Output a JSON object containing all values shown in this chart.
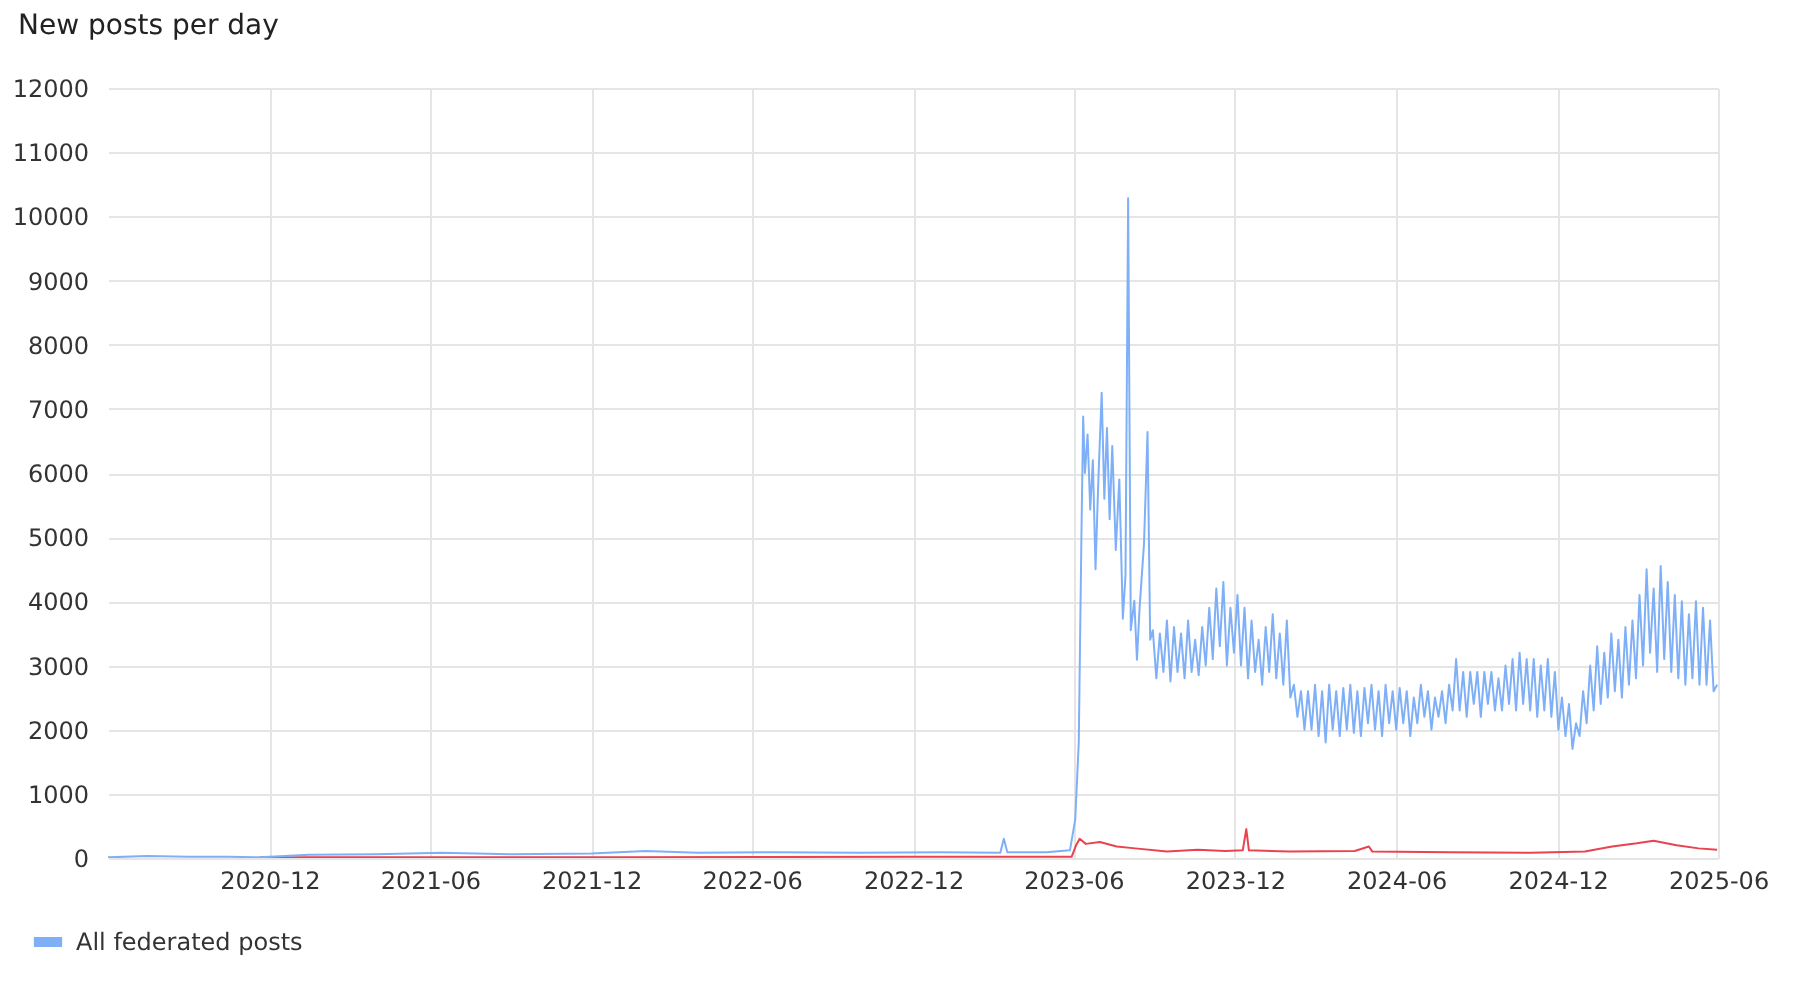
{
  "chart_data": {
    "type": "line",
    "title": "New posts per day",
    "xlim": [
      "2020-06",
      "2025-06"
    ],
    "xticks": [
      "2020-12",
      "2021-06",
      "2021-12",
      "2022-06",
      "2022-12",
      "2023-06",
      "2023-12",
      "2024-06",
      "2024-12",
      "2025-06"
    ],
    "ylim": [
      0,
      12000
    ],
    "yticks": [
      0,
      1000,
      2000,
      3000,
      4000,
      5000,
      6000,
      7000,
      8000,
      9000,
      10000,
      11000,
      12000
    ],
    "grid": true,
    "legend": "bottom left",
    "series": [
      {
        "color": "#e8434f",
        "x": [
          "2020-11-20",
          "2021-06-01",
          "2022-01-01",
          "2022-12-01",
          "2023-05-30",
          "2023-06-04",
          "2023-06-08",
          "2023-06-15",
          "2023-07-01",
          "2023-07-20",
          "2023-08-10",
          "2023-09-15",
          "2023-10-20",
          "2023-11-20",
          "2023-12-10",
          "2023-12-14",
          "2023-12-17",
          "2024-02-01",
          "2024-04-15",
          "2024-05-01",
          "2024-05-05",
          "2024-08-01",
          "2024-11-01",
          "2025-01-01",
          "2025-02-01",
          "2025-03-01",
          "2025-03-20",
          "2025-04-15",
          "2025-05-10",
          "2025-05-31"
        ],
        "values": [
          10,
          10,
          10,
          20,
          20,
          200,
          300,
          220,
          250,
          180,
          150,
          100,
          130,
          110,
          120,
          450,
          120,
          100,
          110,
          180,
          100,
          90,
          80,
          100,
          180,
          230,
          270,
          200,
          150,
          130
        ]
      },
      {
        "name": "All federated posts",
        "color": "#7fb0f7",
        "x": [
          "2020-06-01",
          "2020-07-15",
          "2020-09-01",
          "2020-10-15",
          "2020-11-20",
          "2021-01-15",
          "2021-04-01",
          "2021-06-15",
          "2021-09-01",
          "2021-12-01",
          "2022-02-01",
          "2022-04-01",
          "2022-07-01",
          "2022-10-01",
          "2023-01-01",
          "2023-03-10",
          "2023-03-14",
          "2023-03-18",
          "2023-05-01",
          "2023-05-28",
          "2023-06-03",
          "2023-06-07",
          "2023-06-10",
          "2023-06-12",
          "2023-06-14",
          "2023-06-17",
          "2023-06-20",
          "2023-06-23",
          "2023-06-26",
          "2023-06-29",
          "2023-07-03",
          "2023-07-06",
          "2023-07-09",
          "2023-07-12",
          "2023-07-15",
          "2023-07-19",
          "2023-07-23",
          "2023-07-27",
          "2023-07-30",
          "2023-08-02",
          "2023-08-05",
          "2023-08-09",
          "2023-08-12",
          "2023-08-15",
          "2023-08-20",
          "2023-08-24",
          "2023-08-27",
          "2023-08-30",
          "2023-09-03",
          "2023-09-07",
          "2023-09-11",
          "2023-09-15",
          "2023-09-19",
          "2023-09-23",
          "2023-09-27",
          "2023-10-01",
          "2023-10-05",
          "2023-10-09",
          "2023-10-13",
          "2023-10-17",
          "2023-10-21",
          "2023-10-25",
          "2023-10-29",
          "2023-11-02",
          "2023-11-06",
          "2023-11-10",
          "2023-11-14",
          "2023-11-18",
          "2023-11-22",
          "2023-11-26",
          "2023-11-30",
          "2023-12-04",
          "2023-12-08",
          "2023-12-12",
          "2023-12-16",
          "2023-12-20",
          "2023-12-24",
          "2023-12-28",
          "2024-01-01",
          "2024-01-05",
          "2024-01-09",
          "2024-01-13",
          "2024-01-17",
          "2024-01-21",
          "2024-01-25",
          "2024-01-29",
          "2024-02-02",
          "2024-02-06",
          "2024-02-10",
          "2024-02-14",
          "2024-02-18",
          "2024-02-22",
          "2024-02-26",
          "2024-03-01",
          "2024-03-05",
          "2024-03-09",
          "2024-03-13",
          "2024-03-17",
          "2024-03-21",
          "2024-03-25",
          "2024-03-29",
          "2024-04-02",
          "2024-04-06",
          "2024-04-10",
          "2024-04-14",
          "2024-04-18",
          "2024-04-22",
          "2024-04-26",
          "2024-04-30",
          "2024-05-04",
          "2024-05-08",
          "2024-05-12",
          "2024-05-16",
          "2024-05-20",
          "2024-05-24",
          "2024-05-28",
          "2024-06-01",
          "2024-06-05",
          "2024-06-09",
          "2024-06-13",
          "2024-06-17",
          "2024-06-21",
          "2024-06-25",
          "2024-06-29",
          "2024-07-03",
          "2024-07-07",
          "2024-07-11",
          "2024-07-15",
          "2024-07-19",
          "2024-07-23",
          "2024-07-27",
          "2024-07-31",
          "2024-08-04",
          "2024-08-08",
          "2024-08-12",
          "2024-08-16",
          "2024-08-20",
          "2024-08-24",
          "2024-08-28",
          "2024-09-01",
          "2024-09-05",
          "2024-09-09",
          "2024-09-13",
          "2024-09-17",
          "2024-09-21",
          "2024-09-25",
          "2024-09-29",
          "2024-10-03",
          "2024-10-07",
          "2024-10-11",
          "2024-10-15",
          "2024-10-19",
          "2024-10-23",
          "2024-10-27",
          "2024-10-31",
          "2024-11-04",
          "2024-11-08",
          "2024-11-12",
          "2024-11-16",
          "2024-11-20",
          "2024-11-24",
          "2024-11-28",
          "2024-12-02",
          "2024-12-06",
          "2024-12-10",
          "2024-12-14",
          "2024-12-18",
          "2024-12-22",
          "2024-12-26",
          "2024-12-30",
          "2025-01-03",
          "2025-01-07",
          "2025-01-11",
          "2025-01-15",
          "2025-01-19",
          "2025-01-23",
          "2025-01-27",
          "2025-01-31",
          "2025-02-04",
          "2025-02-08",
          "2025-02-12",
          "2025-02-16",
          "2025-02-20",
          "2025-02-24",
          "2025-02-28",
          "2025-03-04",
          "2025-03-08",
          "2025-03-12",
          "2025-03-16",
          "2025-03-20",
          "2025-03-24",
          "2025-03-28",
          "2025-04-01",
          "2025-04-05",
          "2025-04-09",
          "2025-04-13",
          "2025-04-17",
          "2025-04-21",
          "2025-04-25",
          "2025-04-29",
          "2025-05-03",
          "2025-05-07",
          "2025-05-11",
          "2025-05-15",
          "2025-05-19",
          "2025-05-23",
          "2025-05-27",
          "2025-05-31"
        ],
        "values": [
          10,
          30,
          20,
          20,
          10,
          50,
          60,
          80,
          60,
          70,
          110,
          80,
          90,
          80,
          90,
          80,
          300,
          90,
          90,
          120,
          600,
          1800,
          5000,
          6880,
          6000,
          6600,
          5430,
          6200,
          4500,
          5800,
          7250,
          5600,
          6700,
          5280,
          6420,
          4800,
          5900,
          3730,
          4400,
          10280,
          3550,
          4010,
          3090,
          3900,
          4900,
          6640,
          3400,
          3550,
          2800,
          3500,
          2900,
          3700,
          2750,
          3600,
          2900,
          3500,
          2800,
          3700,
          2900,
          3400,
          2850,
          3600,
          3000,
          3900,
          3100,
          4200,
          3300,
          4300,
          3000,
          3900,
          3200,
          4100,
          3000,
          3900,
          2800,
          3700,
          2900,
          3400,
          2700,
          3600,
          2900,
          3800,
          2800,
          3500,
          2700,
          3700,
          2500,
          2700,
          2200,
          2600,
          2000,
          2600,
          2000,
          2700,
          1900,
          2600,
          1800,
          2700,
          2000,
          2600,
          1900,
          2650,
          2000,
          2700,
          1950,
          2600,
          1900,
          2650,
          2100,
          2700,
          2000,
          2600,
          1900,
          2700,
          2100,
          2600,
          2000,
          2650,
          2100,
          2600,
          1900,
          2500,
          2100,
          2700,
          2200,
          2600,
          2000,
          2500,
          2200,
          2600,
          2100,
          2700,
          2300,
          3100,
          2300,
          2900,
          2200,
          2900,
          2400,
          2900,
          2200,
          2900,
          2400,
          2900,
          2300,
          2800,
          2300,
          3000,
          2400,
          3100,
          2300,
          3200,
          2400,
          3100,
          2300,
          3100,
          2200,
          3000,
          2300,
          3100,
          2200,
          2900,
          2000,
          2500,
          1900,
          2400,
          1700,
          2100,
          1900,
          2600,
          2100,
          3000,
          2300,
          3300,
          2400,
          3200,
          2500,
          3500,
          2600,
          3400,
          2500,
          3600,
          2700,
          3700,
          2800,
          4100,
          3000,
          4500,
          3200,
          4200,
          2900,
          4550,
          3100,
          4300,
          2900,
          4100,
          2800,
          4000,
          2700,
          3800,
          2800,
          4000,
          2700,
          3900,
          2700,
          3700,
          2600,
          2700
        ]
      }
    ]
  }
}
